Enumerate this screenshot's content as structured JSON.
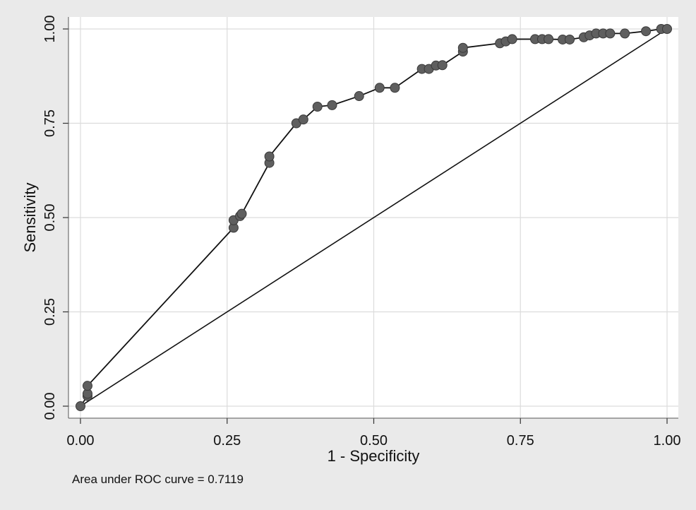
{
  "chart_data": {
    "type": "line",
    "title": "",
    "xlabel": "1 - Specificity",
    "ylabel": "Sensitivity",
    "xlim": [
      0,
      1
    ],
    "ylim": [
      0,
      1
    ],
    "xticks": [
      "0.00",
      "0.25",
      "0.50",
      "0.75",
      "1.00"
    ],
    "yticks": [
      "0.00",
      "0.25",
      "0.50",
      "0.75",
      "1.00"
    ],
    "grid": true,
    "legend": "none",
    "annotation": "Area under ROC curve = 0.7119",
    "colors": {
      "background": "#eaeaea",
      "plot_area": "#ffffff",
      "grid": "#dcdcdc",
      "line": "#111111",
      "marker": "#5f5f5f",
      "marker_edge": "#3a3a3a"
    },
    "series": [
      {
        "type": "line-markers",
        "x": [
          0.0,
          0.012,
          0.012,
          0.012,
          0.261,
          0.261,
          0.272,
          0.275,
          0.322,
          0.322,
          0.368,
          0.38,
          0.404,
          0.429,
          0.475,
          0.51,
          0.536,
          0.582,
          0.594,
          0.606,
          0.617,
          0.652,
          0.652,
          0.715,
          0.725,
          0.736,
          0.775,
          0.787,
          0.798,
          0.822,
          0.834,
          0.858,
          0.868,
          0.879,
          0.891,
          0.903,
          0.928,
          0.964,
          0.99,
          1.0
        ],
        "y": [
          0.0,
          0.027,
          0.033,
          0.054,
          0.473,
          0.493,
          0.504,
          0.51,
          0.645,
          0.662,
          0.75,
          0.76,
          0.794,
          0.798,
          0.822,
          0.844,
          0.844,
          0.894,
          0.894,
          0.903,
          0.904,
          0.94,
          0.95,
          0.962,
          0.967,
          0.973,
          0.973,
          0.973,
          0.973,
          0.972,
          0.972,
          0.978,
          0.983,
          0.988,
          0.988,
          0.988,
          0.988,
          0.994,
          1.0,
          1.0
        ]
      },
      {
        "type": "reference-line",
        "x": [
          0,
          1
        ],
        "y": [
          0,
          1
        ]
      }
    ]
  }
}
